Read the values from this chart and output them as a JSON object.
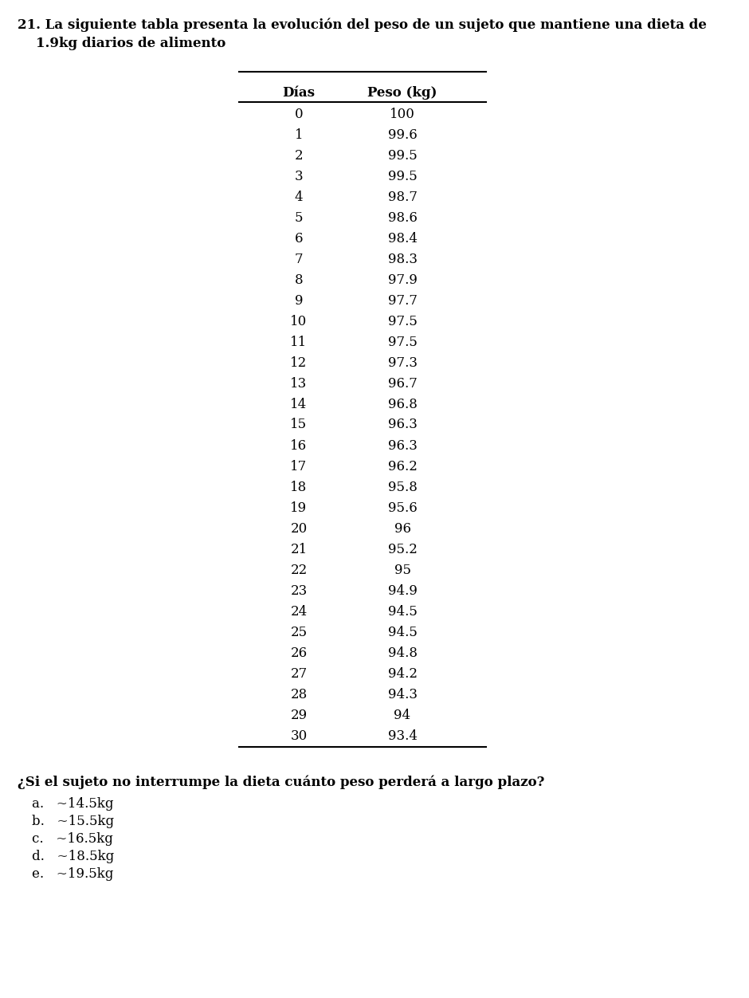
{
  "title_line1": "21. La siguiente tabla presenta la evolución del peso de un sujeto que mantiene una dieta de",
  "title_line2": "    1.9kg diarios de alimento",
  "col1_header": "Días",
  "col2_header": "Peso (kg)",
  "days": [
    0,
    1,
    2,
    3,
    4,
    5,
    6,
    7,
    8,
    9,
    10,
    11,
    12,
    13,
    14,
    15,
    16,
    17,
    18,
    19,
    20,
    21,
    22,
    23,
    24,
    25,
    26,
    27,
    28,
    29,
    30
  ],
  "weights": [
    100,
    99.6,
    99.5,
    99.5,
    98.7,
    98.6,
    98.4,
    98.3,
    97.9,
    97.7,
    97.5,
    97.5,
    97.3,
    96.7,
    96.8,
    96.3,
    96.3,
    96.2,
    95.8,
    95.6,
    96,
    95.2,
    95,
    94.9,
    94.5,
    94.5,
    94.8,
    94.2,
    94.3,
    94,
    93.4
  ],
  "question": "¿Si el sujeto no interrumpe la dieta cuánto peso perderá a largo plazo?",
  "options": [
    "a.   ~14.5kg",
    "b.   ~15.5kg",
    "c.   ~16.5kg",
    "d.   ~18.5kg",
    "e.   ~19.5kg"
  ],
  "bg_color": "#ffffff",
  "text_color": "#000000",
  "title_fontsize": 12,
  "table_fontsize": 12,
  "question_fontsize": 12,
  "options_fontsize": 12,
  "fig_width": 9.4,
  "fig_height": 12.52,
  "dpi": 100
}
